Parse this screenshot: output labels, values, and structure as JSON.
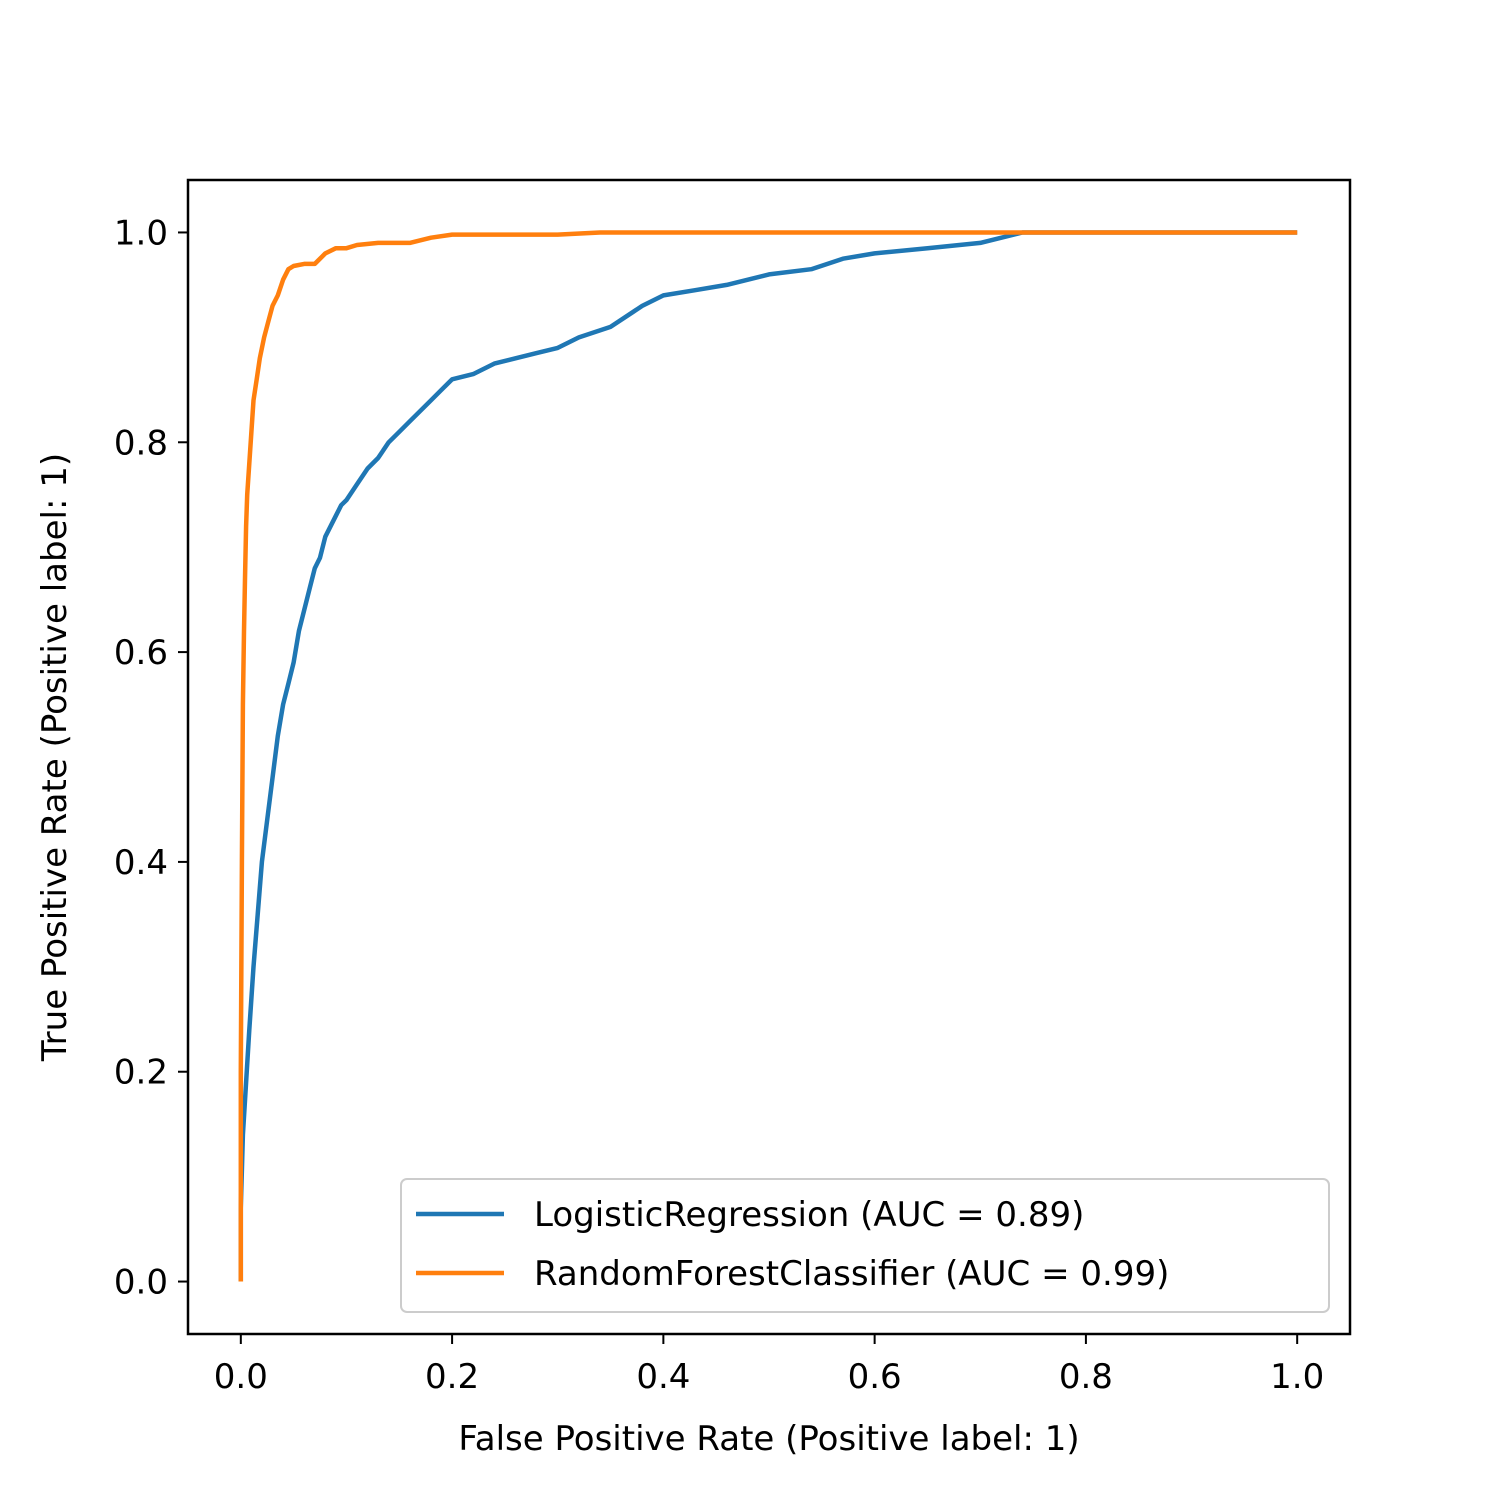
{
  "chart_data": {
    "type": "line",
    "xlabel": "False Positive Rate (Positive label: 1)",
    "ylabel": "True Positive Rate (Positive label: 1)",
    "xlim": [
      -0.05,
      1.05
    ],
    "ylim": [
      -0.05,
      1.05
    ],
    "xticks": [
      "0.0",
      "0.2",
      "0.4",
      "0.6",
      "0.8",
      "1.0"
    ],
    "yticks": [
      "0.0",
      "0.2",
      "0.4",
      "0.6",
      "0.8",
      "1.0"
    ],
    "grid": false,
    "legend_position": "lower-right",
    "series": [
      {
        "name": "LogisticRegression (AUC = 0.89)",
        "color": "#1f77b4",
        "x": [
          0.0,
          0.0,
          0.002,
          0.005,
          0.008,
          0.012,
          0.016,
          0.02,
          0.025,
          0.03,
          0.035,
          0.04,
          0.045,
          0.05,
          0.055,
          0.06,
          0.065,
          0.07,
          0.075,
          0.08,
          0.085,
          0.09,
          0.095,
          0.1,
          0.11,
          0.12,
          0.13,
          0.14,
          0.15,
          0.16,
          0.17,
          0.18,
          0.19,
          0.2,
          0.22,
          0.24,
          0.26,
          0.28,
          0.3,
          0.32,
          0.35,
          0.38,
          0.4,
          0.43,
          0.46,
          0.5,
          0.54,
          0.57,
          0.6,
          0.65,
          0.7,
          0.74,
          0.8,
          0.82,
          1.0
        ],
        "y": [
          0.0,
          0.07,
          0.14,
          0.19,
          0.24,
          0.3,
          0.35,
          0.4,
          0.44,
          0.48,
          0.52,
          0.55,
          0.57,
          0.59,
          0.62,
          0.64,
          0.66,
          0.68,
          0.69,
          0.71,
          0.72,
          0.73,
          0.74,
          0.745,
          0.76,
          0.775,
          0.785,
          0.8,
          0.81,
          0.82,
          0.83,
          0.84,
          0.85,
          0.86,
          0.865,
          0.875,
          0.88,
          0.885,
          0.89,
          0.9,
          0.91,
          0.93,
          0.94,
          0.945,
          0.95,
          0.96,
          0.965,
          0.975,
          0.98,
          0.985,
          0.99,
          1.0,
          1.0,
          1.0,
          1.0
        ]
      },
      {
        "name": "RandomForestClassifier (AUC = 0.99)",
        "color": "#ff7f0e",
        "x": [
          0.0,
          0.0,
          0.001,
          0.002,
          0.003,
          0.004,
          0.005,
          0.006,
          0.008,
          0.01,
          0.012,
          0.015,
          0.018,
          0.022,
          0.026,
          0.03,
          0.035,
          0.04,
          0.045,
          0.05,
          0.06,
          0.07,
          0.08,
          0.09,
          0.1,
          0.11,
          0.13,
          0.16,
          0.18,
          0.2,
          0.25,
          0.3,
          0.34,
          0.36,
          0.5,
          0.8,
          1.0
        ],
        "y": [
          0.0,
          0.2,
          0.4,
          0.55,
          0.62,
          0.67,
          0.72,
          0.75,
          0.78,
          0.81,
          0.84,
          0.86,
          0.88,
          0.9,
          0.915,
          0.93,
          0.94,
          0.955,
          0.965,
          0.968,
          0.97,
          0.97,
          0.98,
          0.985,
          0.985,
          0.988,
          0.99,
          0.99,
          0.995,
          0.998,
          0.998,
          0.998,
          1.0,
          1.0,
          1.0,
          1.0,
          1.0
        ]
      }
    ]
  }
}
